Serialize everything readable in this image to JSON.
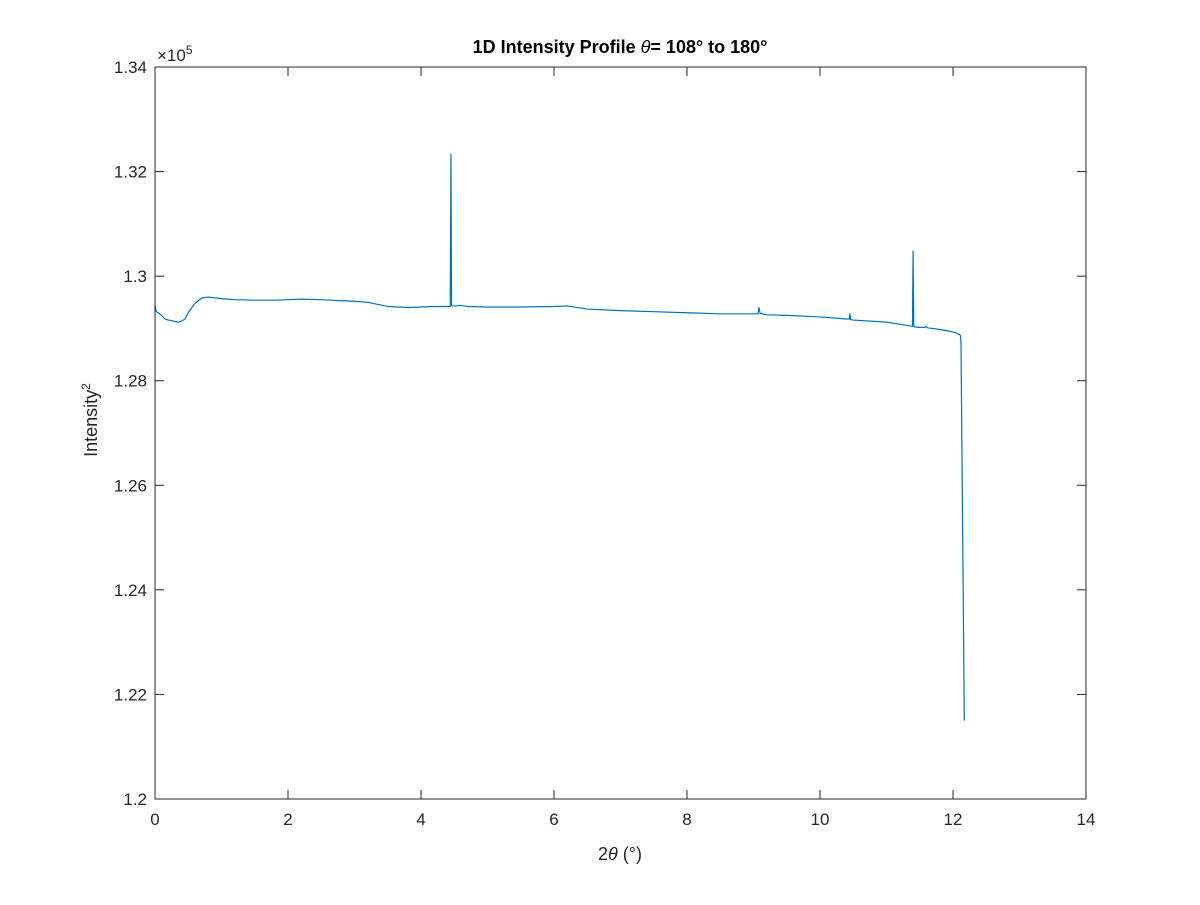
{
  "chart_data": {
    "type": "line",
    "title": {
      "prefix": "1D Intensity Profile ",
      "symbol": "θ",
      "suffix": "= 108° to 180°"
    },
    "xlabel": {
      "prefix": "2",
      "symbol": "θ",
      "suffix": " (°)"
    },
    "ylabel": {
      "base": "Intensity",
      "superscript": "2"
    },
    "y_multiplier": {
      "prefix": "×10",
      "exponent": "5"
    },
    "xlim": [
      0,
      14
    ],
    "ylim": [
      1.2,
      1.34
    ],
    "x_ticks": [
      0,
      2,
      4,
      6,
      8,
      10,
      12,
      14
    ],
    "x_tick_labels": [
      "0",
      "2",
      "4",
      "6",
      "8",
      "10",
      "12",
      "14"
    ],
    "y_ticks": [
      1.2,
      1.22,
      1.24,
      1.26,
      1.28,
      1.3,
      1.32,
      1.34
    ],
    "y_tick_labels": [
      "1.2",
      "1.22",
      "1.24",
      "1.26",
      "1.28",
      "1.3",
      "1.32",
      "1.34"
    ],
    "grid": false,
    "series": [
      {
        "color": "#0072BD",
        "x": [
          0,
          0.02,
          0.05,
          0.1,
          0.15,
          0.2,
          0.25,
          0.3,
          0.35,
          0.4,
          0.45,
          0.5,
          0.6,
          0.7,
          0.8,
          1.0,
          1.2,
          1.5,
          1.8,
          2.0,
          2.2,
          2.5,
          2.8,
          3.0,
          3.2,
          3.5,
          3.8,
          4.0,
          4.2,
          4.4,
          4.44,
          4.45,
          4.46,
          4.47,
          4.5,
          4.6,
          4.7,
          5.0,
          5.5,
          6.0,
          6.2,
          6.5,
          7.0,
          7.5,
          8.0,
          8.5,
          9.0,
          9.07,
          9.08,
          9.1,
          9.2,
          9.5,
          10.0,
          10.4,
          10.44,
          10.45,
          10.46,
          10.5,
          11.0,
          11.3,
          11.39,
          11.4,
          11.41,
          11.42,
          11.5,
          11.58,
          11.6,
          11.62,
          11.7,
          11.8,
          11.9,
          12.0,
          12.05,
          12.1,
          12.11,
          12.12,
          12.17
        ],
        "y": [
          1.2944,
          1.2932,
          1.293,
          1.2925,
          1.2918,
          1.2916,
          1.2915,
          1.2913,
          1.2912,
          1.2914,
          1.2918,
          1.293,
          1.2948,
          1.2958,
          1.296,
          1.2957,
          1.2955,
          1.2954,
          1.2954,
          1.2955,
          1.2956,
          1.2955,
          1.2953,
          1.2952,
          1.295,
          1.2942,
          1.294,
          1.2941,
          1.2942,
          1.2942,
          1.2942,
          1.3233,
          1.2944,
          1.2943,
          1.2943,
          1.2944,
          1.2942,
          1.2941,
          1.2941,
          1.2942,
          1.2943,
          1.2937,
          1.2934,
          1.2932,
          1.293,
          1.2928,
          1.2928,
          1.2928,
          1.294,
          1.2929,
          1.2926,
          1.2925,
          1.2922,
          1.2918,
          1.2918,
          1.2928,
          1.2917,
          1.2916,
          1.2912,
          1.2906,
          1.2904,
          1.3048,
          1.2904,
          1.2903,
          1.2902,
          1.2902,
          1.2904,
          1.2901,
          1.29,
          1.2898,
          1.2896,
          1.2893,
          1.2891,
          1.2888,
          1.2887,
          1.2875,
          1.215
        ]
      }
    ]
  }
}
